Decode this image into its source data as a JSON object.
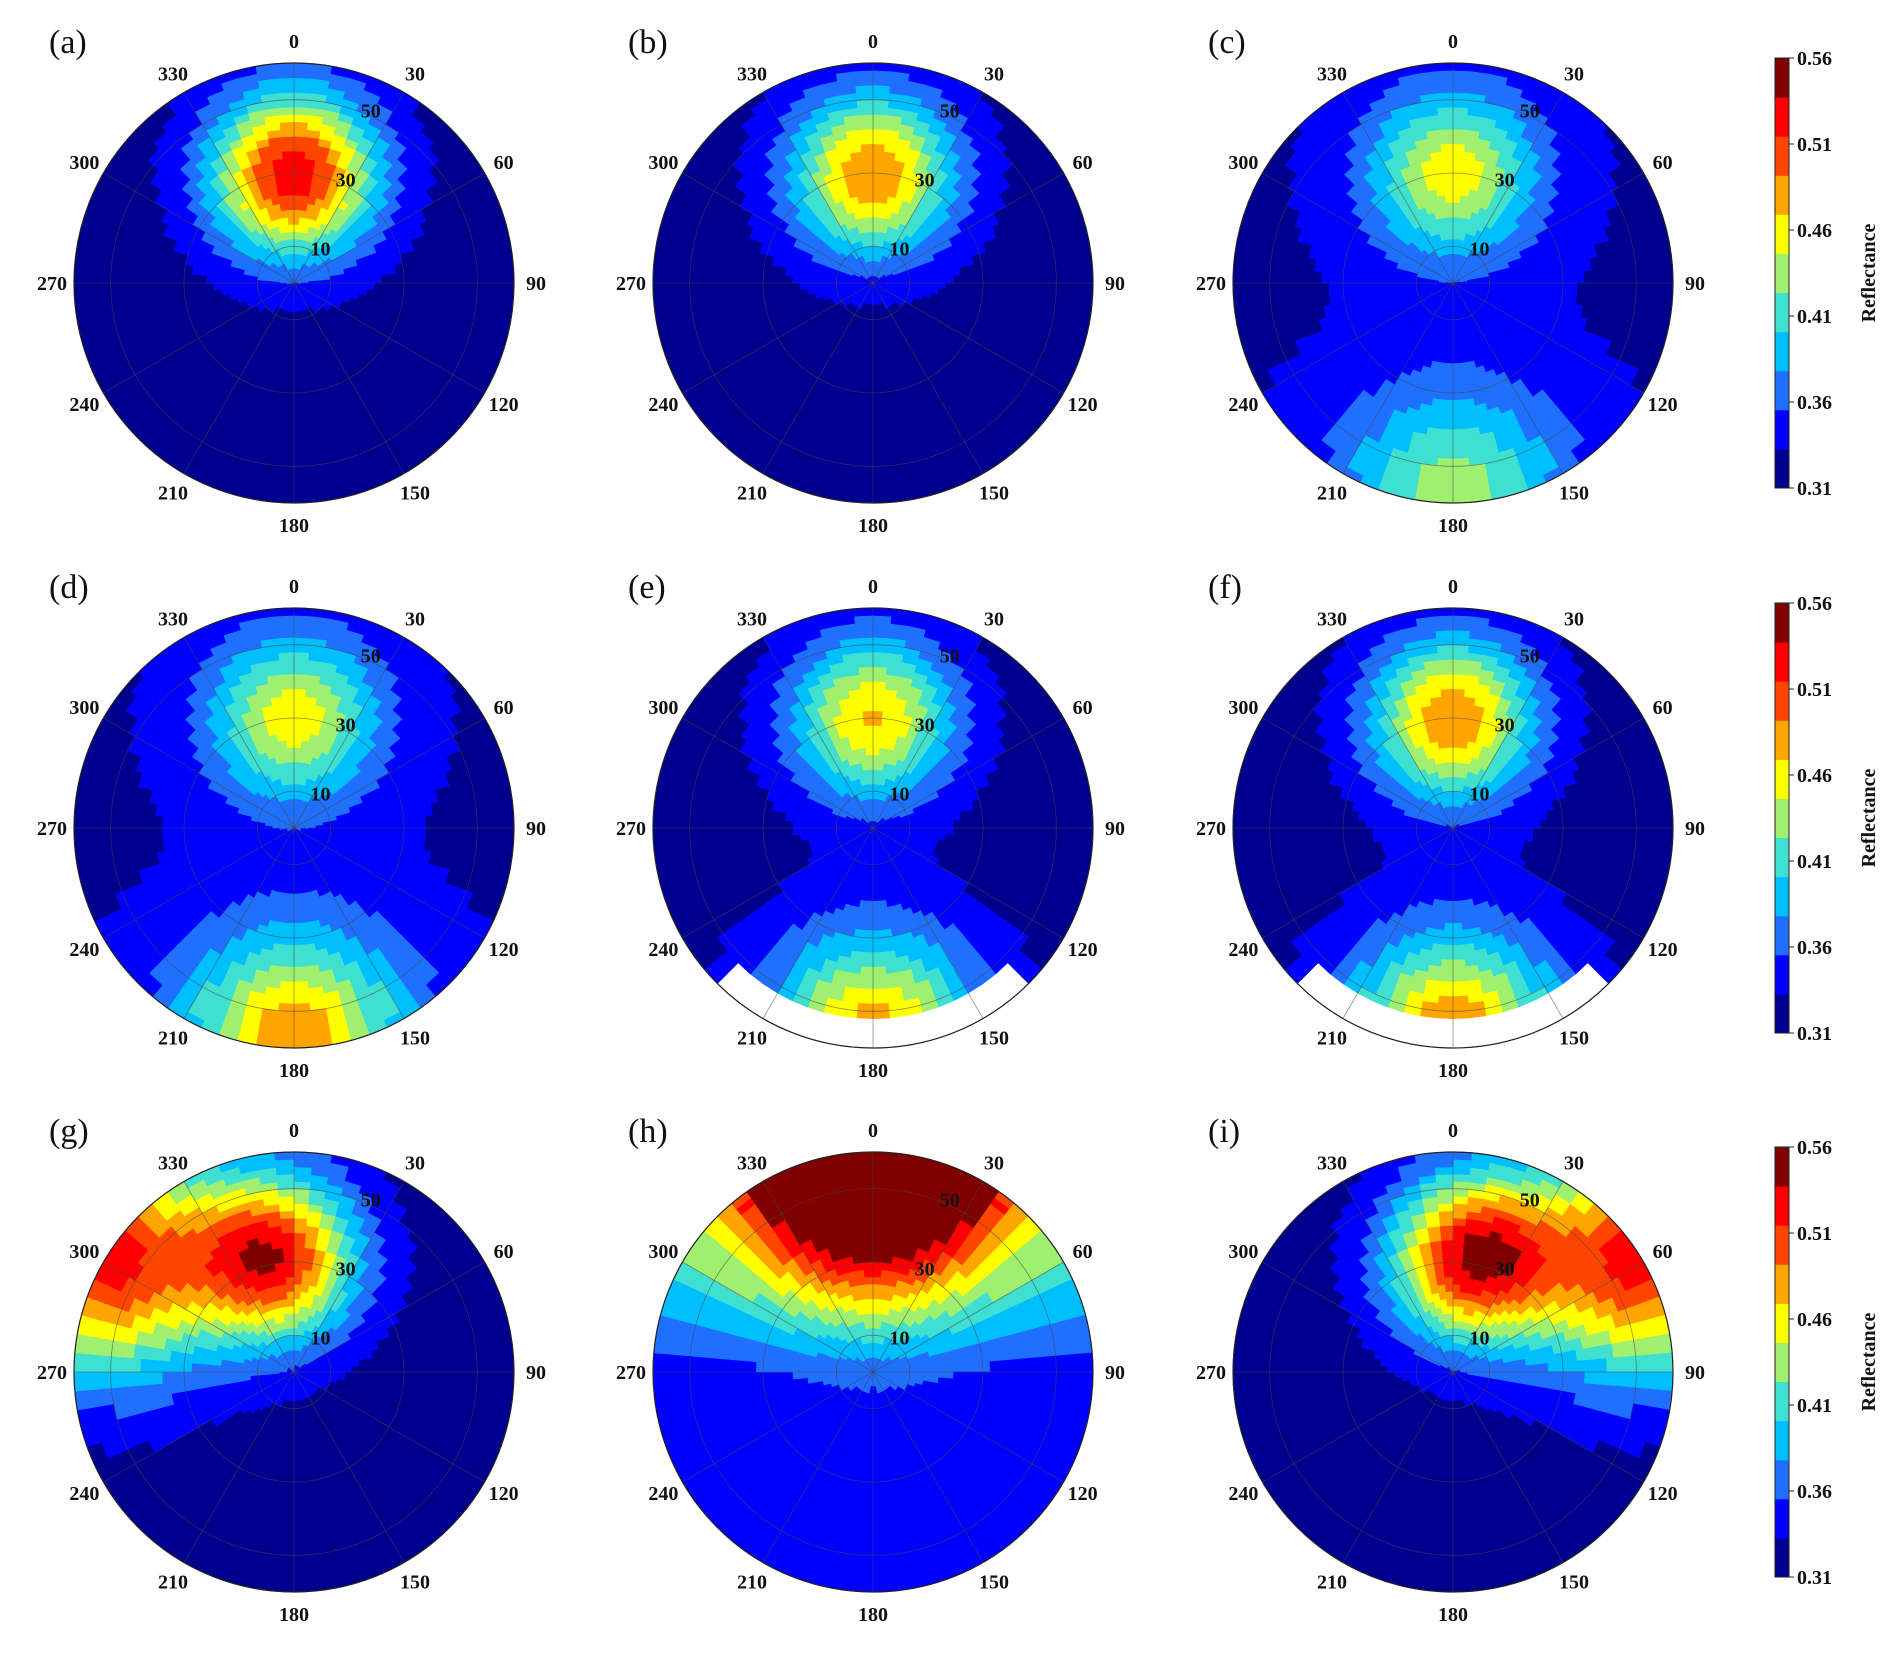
{
  "chart_data": {
    "type": "heatmap",
    "projection": "polar",
    "layout": "3x3 grid of polar contour plots",
    "azimuth_tick_labels": [
      "0",
      "30",
      "60",
      "90",
      "120",
      "150",
      "180",
      "210",
      "240",
      "270",
      "300",
      "330"
    ],
    "zenith_tick_labels": [
      "10",
      "30",
      "50"
    ],
    "zenith_rings": [
      10,
      30,
      50,
      60
    ],
    "radial_max": 60,
    "colorbar": {
      "title": "Reflectance",
      "min": 0.31,
      "max": 0.56,
      "tick_labels": [
        "0.56",
        "0.51",
        "0.46",
        "0.41",
        "0.36",
        "0.31"
      ],
      "colormap": "jet",
      "level_colors": [
        "#00008f",
        "#0000ff",
        "#2070ff",
        "#00bfff",
        "#40e0d0",
        "#a0f070",
        "#ffff00",
        "#ffa500",
        "#ff4500",
        "#ff0000",
        "#800000"
      ]
    },
    "panels": [
      {
        "label": "(a)",
        "hotspot": {
          "azimuth": 0,
          "zenith": 30,
          "peak": 0.53
        },
        "background": 0.32,
        "notes": "hotspot peak in forward direction, dark lower half"
      },
      {
        "label": "(b)",
        "hotspot": {
          "azimuth": 0,
          "zenith": 30,
          "peak": 0.49
        },
        "background": 0.32
      },
      {
        "label": "(c)",
        "hotspot": {
          "azimuth": 0,
          "zenith": 30,
          "peak": 0.46
        },
        "background": 0.33,
        "edge": {
          "azimuth": 180,
          "value": 0.44
        }
      },
      {
        "label": "(d)",
        "hotspot": {
          "azimuth": 0,
          "zenith": 30,
          "peak": 0.46
        },
        "background": 0.33,
        "edge": {
          "azimuth": 180,
          "value": 0.49
        }
      },
      {
        "label": "(e)",
        "hotspot": {
          "azimuth": 0,
          "zenith": 30,
          "peak": 0.47
        },
        "background": 0.32,
        "edge": {
          "azimuth": 180,
          "value": 0.49
        },
        "clipped_below": true
      },
      {
        "label": "(f)",
        "hotspot": {
          "azimuth": 0,
          "zenith": 30,
          "peak": 0.49
        },
        "background": 0.32,
        "edge": {
          "azimuth": 180,
          "value": 0.5
        },
        "clipped_below": true
      },
      {
        "label": "(g)",
        "hotspot": {
          "azimuth": 350,
          "zenith": 32,
          "peak": 0.52
        },
        "background": 0.32,
        "edge": {
          "azimuth": 300,
          "value": 0.52
        }
      },
      {
        "label": "(h)",
        "hotspot": {
          "azimuth": 0,
          "zenith": 55,
          "peak": 0.56
        },
        "background": 0.34,
        "notes": "high reflectance band over upper part"
      },
      {
        "label": "(i)",
        "hotspot": {
          "azimuth": 10,
          "zenith": 32,
          "peak": 0.53
        },
        "background": 0.32,
        "edge": {
          "azimuth": 60,
          "value": 0.52
        }
      }
    ]
  }
}
